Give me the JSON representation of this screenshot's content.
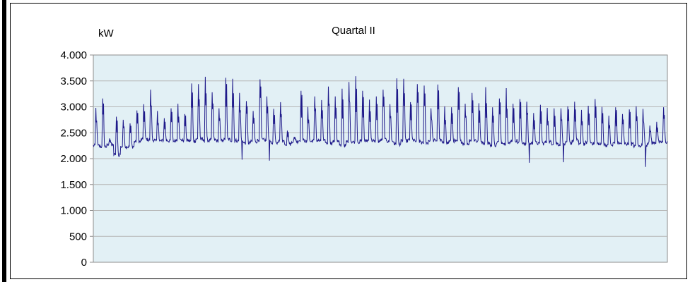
{
  "chart_data": {
    "type": "line",
    "title": "Quartal II",
    "ylabel": "kW",
    "xlabel": "",
    "ylim": [
      0,
      4000
    ],
    "y_ticks": [
      0,
      500,
      1000,
      1500,
      2000,
      2500,
      3000,
      3500,
      4000
    ],
    "y_tick_labels": [
      "0",
      "500",
      "1.000",
      "1.500",
      "2.000",
      "2.500",
      "3.000",
      "3.500",
      "4.000"
    ],
    "grid": true,
    "legend": "none",
    "colors": {
      "plot_background": "#e2f0f5",
      "line": "#1f1a8a",
      "grid": "#b5b5b5"
    },
    "daily_peaks": [
      2980,
      3160,
      2390,
      2810,
      2750,
      2680,
      2930,
      3050,
      3330,
      2920,
      2780,
      2970,
      3060,
      2860,
      3450,
      3440,
      3580,
      3280,
      2970,
      3560,
      3540,
      3270,
      3110,
      2920,
      3530,
      3200,
      2960,
      3090,
      2540,
      2420,
      3310,
      3000,
      3200,
      3130,
      3390,
      3200,
      3350,
      3480,
      3590,
      3310,
      3140,
      3200,
      3330,
      3050,
      3550,
      3540,
      3090,
      3440,
      3410,
      2970,
      3430,
      3010,
      2990,
      3380,
      3060,
      3270,
      3070,
      3380,
      2990,
      3160,
      3360,
      3060,
      3150,
      3100,
      2880,
      3040,
      2980,
      2970,
      2970,
      3010,
      3100,
      2940,
      3020,
      3150,
      3000,
      2830,
      2990,
      2860,
      2950,
      3010,
      2960,
      2640,
      2710,
      2990
    ],
    "daily_base": [
      2250,
      2230,
      2260,
      2080,
      2230,
      2230,
      2330,
      2370,
      2360,
      2340,
      2350,
      2340,
      2360,
      2350,
      2340,
      2380,
      2350,
      2360,
      2340,
      2370,
      2350,
      2340,
      2300,
      2330,
      2360,
      2350,
      2300,
      2340,
      2280,
      2330,
      2350,
      2330,
      2350,
      2340,
      2300,
      2330,
      2250,
      2330,
      2320,
      2340,
      2350,
      2330,
      2360,
      2330,
      2280,
      2340,
      2360,
      2330,
      2300,
      2350,
      2350,
      2300,
      2340,
      2330,
      2290,
      2360,
      2330,
      2300,
      2260,
      2320,
      2290,
      2350,
      2310,
      2280,
      2300,
      2290,
      2320,
      2290,
      2270,
      2300,
      2350,
      2280,
      2310,
      2290,
      2270,
      2250,
      2300,
      2290,
      2280,
      2240,
      2260,
      2300,
      2310,
      2320
    ],
    "notable_dips": [
      {
        "day": 3,
        "value": 2040
      },
      {
        "day": 21,
        "value": 1980
      },
      {
        "day": 25,
        "value": 1960
      },
      {
        "day": 63,
        "value": 1920
      },
      {
        "day": 68,
        "value": 1930
      },
      {
        "day": 80,
        "value": 1840
      }
    ]
  }
}
